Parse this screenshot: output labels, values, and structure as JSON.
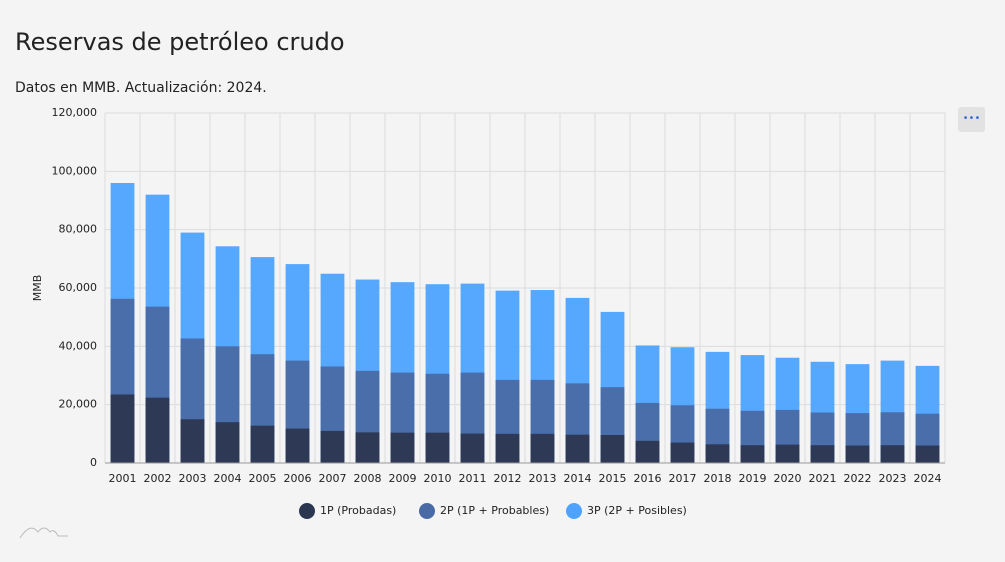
{
  "chart_data": {
    "type": "bar",
    "title": "Reservas de petróleo crudo",
    "subtitle": "Datos en MMB. Actualización: 2024.",
    "y_label": "MMB",
    "categories": [
      "2001",
      "2002",
      "2003",
      "2004",
      "2005",
      "2006",
      "2007",
      "2008",
      "2009",
      "2010",
      "2011",
      "2012",
      "2013",
      "2014",
      "2015",
      "2016",
      "2017",
      "2018",
      "2019",
      "2020",
      "2021",
      "2022",
      "2023",
      "2024"
    ],
    "series": [
      {
        "name": "3P (2P + Posibles)",
        "color": "#4da3ff",
        "values": [
          96000,
          92000,
          79000,
          74300,
          70600,
          68200,
          64900,
          62900,
          62000,
          61300,
          61500,
          59100,
          59300,
          56600,
          51800,
          40300,
          39700,
          38100,
          37000,
          36100,
          34700,
          33900,
          35100,
          33300
        ]
      },
      {
        "name": "2P (1P + Probables)",
        "color": "#4a6aa5",
        "values": [
          56300,
          53600,
          42700,
          40000,
          37300,
          35100,
          33100,
          31600,
          31000,
          30600,
          31000,
          28500,
          28500,
          27300,
          26000,
          20600,
          19800,
          18600,
          17900,
          18200,
          17300,
          17100,
          17400,
          16900
        ]
      },
      {
        "name": "1P (Probadas)",
        "color": "#2b3650",
        "values": [
          23500,
          22400,
          15000,
          14000,
          12800,
          11800,
          11000,
          10500,
          10400,
          10400,
          10100,
          10000,
          10000,
          9700,
          9600,
          7600,
          7000,
          6400,
          6100,
          6300,
          6100,
          6000,
          6100,
          6000
        ]
      }
    ],
    "ylim": [
      0,
      120000
    ],
    "yticks": [
      0,
      {
        "value": 20000,
        "label": "20,000"
      },
      {
        "value": 40000,
        "label": "40,000"
      },
      {
        "value": 60000,
        "label": "60,000"
      },
      {
        "value": 80000,
        "label": "80,000"
      },
      {
        "value": 100000,
        "label": "100,000"
      },
      {
        "value": 120000,
        "label": "120,000"
      }
    ],
    "grid": true
  }
}
